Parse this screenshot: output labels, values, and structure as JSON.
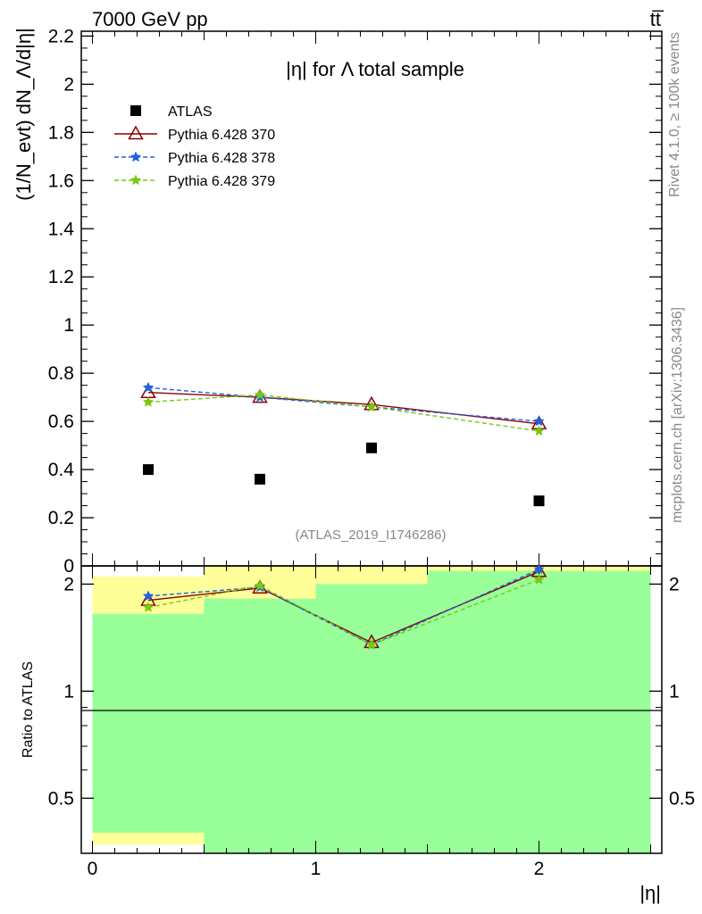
{
  "header": {
    "energy_label": "7000 GeV pp",
    "process_label": "tt̅",
    "rivet_label": "Rivet 4.1.0, ≥ 100k events",
    "mcplots_label": "mcplots.cern.ch [arXiv:1306.3436]",
    "analysis_label": "(ATLAS_2019_I1746286)"
  },
  "colors": {
    "atlas": "#000000",
    "p370": "#8b0000",
    "p378": "#1e64dc",
    "p379": "#78c814",
    "band_outer": "#ffff99",
    "band_inner": "#99ff99"
  },
  "chart_data": [
    {
      "type": "scatter",
      "title": "|η| for Λ total sample",
      "xlabel": "|η|",
      "ylabel": "(1/N_evt) dN_Λ/d|η|",
      "xlim": [
        -0.05,
        2.55
      ],
      "ylim": [
        0,
        2.22
      ],
      "yticks": [
        "0",
        "0.2",
        "0.4",
        "0.6",
        "0.8",
        "1",
        "1.2",
        "1.4",
        "1.6",
        "1.8",
        "2",
        "2.2"
      ],
      "x": [
        0.25,
        0.75,
        1.25,
        2.0
      ],
      "legend_position": "top-left",
      "series": [
        {
          "name": "ATLAS",
          "key": "atlas",
          "marker": "square",
          "values": [
            0.4,
            0.36,
            0.49,
            0.27
          ]
        },
        {
          "name": "Pythia 6.428 370",
          "key": "p370",
          "marker": "triangle",
          "line": "solid",
          "values": [
            0.72,
            0.7,
            0.67,
            0.59
          ]
        },
        {
          "name": "Pythia 6.428 378",
          "key": "p378",
          "marker": "star",
          "line": "dashed",
          "values": [
            0.74,
            0.7,
            0.66,
            0.6
          ]
        },
        {
          "name": "Pythia 6.428 379",
          "key": "p379",
          "marker": "star",
          "line": "dashed",
          "values": [
            0.68,
            0.71,
            0.66,
            0.56
          ]
        }
      ]
    },
    {
      "type": "line",
      "ylabel": "Ratio to ATLAS",
      "xlabel": "|η|",
      "xlim": [
        -0.05,
        2.55
      ],
      "ylim": [
        0.35,
        2.25
      ],
      "log_y": true,
      "xticks": [
        "0",
        "1",
        "2"
      ],
      "yticks": [
        "0.5",
        "1",
        "2"
      ],
      "x": [
        0.25,
        0.75,
        1.25,
        2.0
      ],
      "bands": [
        {
          "x_from": 0.0,
          "x_to": 0.5,
          "outer": [
            0.37,
            2.1
          ],
          "inner": [
            0.4,
            1.65
          ]
        },
        {
          "x_from": 0.5,
          "x_to": 1.0,
          "outer": [
            0.35,
            2.25
          ],
          "inner": [
            0.35,
            1.82
          ]
        },
        {
          "x_from": 1.0,
          "x_to": 1.5,
          "outer": [
            0.35,
            2.25
          ],
          "inner": [
            0.35,
            2.0
          ]
        },
        {
          "x_from": 1.5,
          "x_to": 2.5,
          "outer": [
            0.35,
            2.25
          ],
          "inner": [
            0.35,
            2.18
          ]
        }
      ],
      "series": [
        {
          "name": "Pythia 6.428 370",
          "key": "p370",
          "marker": "triangle",
          "values": [
            1.8,
            1.95,
            1.37,
            2.17
          ]
        },
        {
          "name": "Pythia 6.428 378",
          "key": "p378",
          "marker": "star",
          "values": [
            1.85,
            1.96,
            1.35,
            2.2
          ]
        },
        {
          "name": "Pythia 6.428 379",
          "key": "p379",
          "marker": "star",
          "values": [
            1.72,
            1.98,
            1.35,
            2.06
          ]
        }
      ]
    }
  ]
}
